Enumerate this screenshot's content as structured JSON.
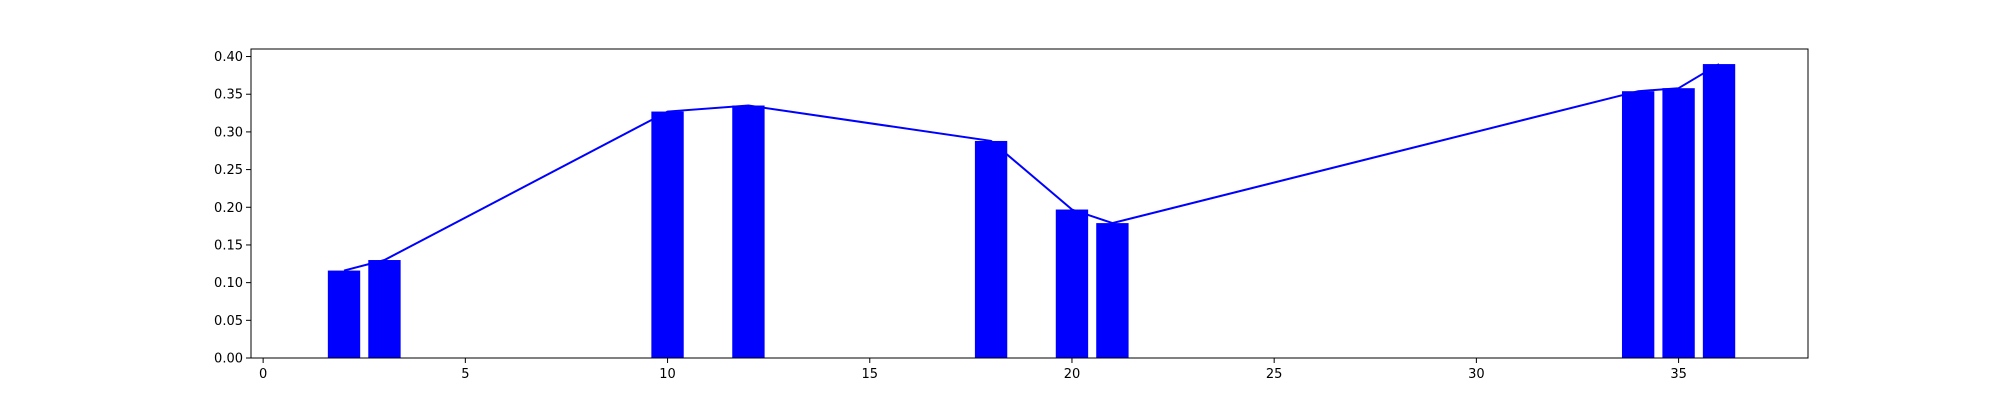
{
  "chart_data": {
    "type": "bar",
    "x": [
      2,
      3,
      10,
      12,
      18,
      20,
      21,
      34,
      35,
      36
    ],
    "values": [
      0.116,
      0.13,
      0.327,
      0.335,
      0.288,
      0.197,
      0.179,
      0.354,
      0.358,
      0.39
    ],
    "line_overlay": true,
    "bar_width": 0.8,
    "xlim": [
      -0.3,
      38.2
    ],
    "ylim": [
      0,
      0.41
    ],
    "xticks": [
      0,
      5,
      10,
      15,
      20,
      25,
      30,
      35
    ],
    "xtick_labels": [
      "0",
      "5",
      "10",
      "15",
      "20",
      "25",
      "30",
      "35"
    ],
    "yticks": [
      0,
      0.05,
      0.1,
      0.15,
      0.2,
      0.25,
      0.3,
      0.35,
      0.4
    ],
    "ytick_labels": [
      "0.00",
      "0.05",
      "0.10",
      "0.15",
      "0.20",
      "0.25",
      "0.30",
      "0.35",
      "0.40"
    ],
    "grid": false,
    "colors": {
      "bar": "#0000ff",
      "line": "#0000ff",
      "axis": "#000000"
    }
  }
}
